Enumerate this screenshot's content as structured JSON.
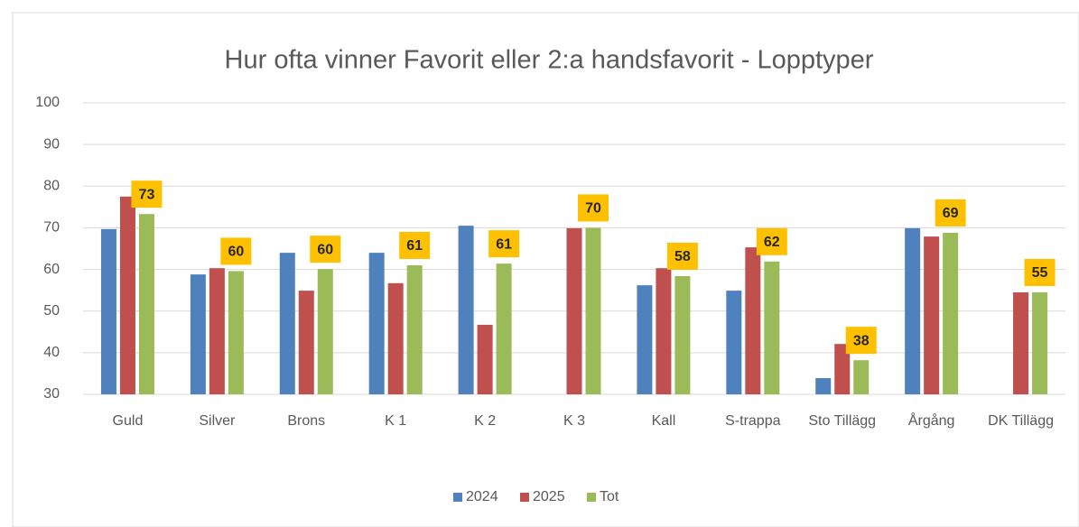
{
  "chart_data": {
    "type": "bar",
    "title": "Hur ofta vinner Favorit eller 2:a handsfavorit - Lopptyper",
    "categories": [
      "Guld",
      "Silver",
      "Brons",
      "K 1",
      "K 2",
      "K 3",
      "Kall",
      "S-trappa",
      "Sto Tillägg",
      "Årgång",
      "DK Tillägg"
    ],
    "series": [
      {
        "name": "2024",
        "color": "#4f81bd",
        "values": [
          69.7,
          58.8,
          64.0,
          64.0,
          70.5,
          null,
          56.2,
          54.9,
          33.9,
          69.9,
          null
        ]
      },
      {
        "name": "2025",
        "color": "#c0504d",
        "values": [
          77.5,
          60.3,
          54.9,
          56.7,
          46.7,
          69.9,
          60.3,
          65.3,
          42.1,
          67.9,
          54.5
        ]
      },
      {
        "name": "Tot",
        "color": "#9bbb59",
        "values": [
          73.3,
          59.6,
          60.1,
          61.0,
          61.4,
          70.0,
          58.4,
          61.9,
          38.2,
          68.8,
          54.5
        ],
        "value_labels": [
          "73",
          "60",
          "60",
          "61",
          "61",
          "70",
          "58",
          "62",
          "38",
          "69",
          "55"
        ]
      }
    ],
    "ylim": [
      30,
      100
    ],
    "yticks": [
      30,
      40,
      50,
      60,
      70,
      80,
      90,
      100
    ],
    "grid": true,
    "legend": "bottom"
  }
}
